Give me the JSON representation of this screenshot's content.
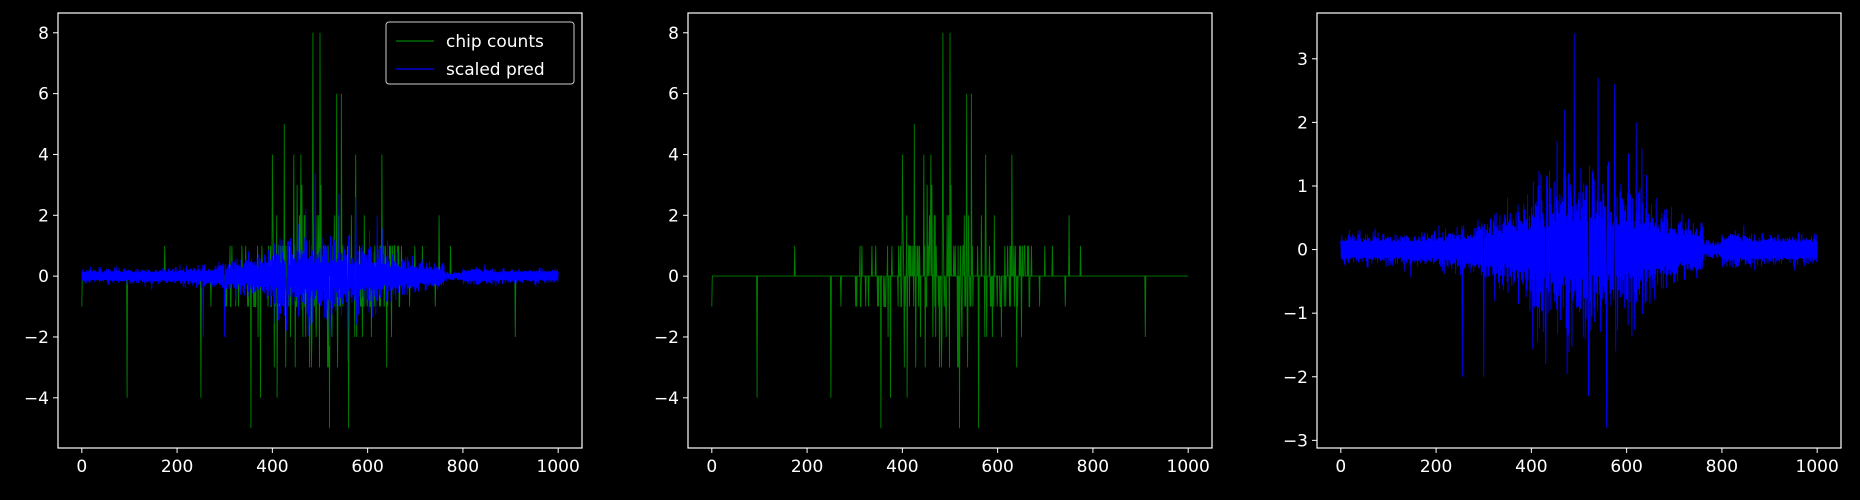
{
  "figure": {
    "background": "#000000",
    "foreground": "#ffffff"
  },
  "chart_data": [
    {
      "type": "line",
      "title": "",
      "xlabel": "",
      "ylabel": "",
      "xlim": [
        -50,
        1050
      ],
      "ylim": [
        -5.65,
        8.65
      ],
      "xticks": [
        0,
        200,
        400,
        600,
        800,
        1000
      ],
      "yticks": [
        -4,
        -2,
        0,
        2,
        4,
        6,
        8
      ],
      "grid": false,
      "legend": {
        "position": "top-right",
        "entries": [
          "chip counts",
          "scaled pred"
        ]
      },
      "series": [
        {
          "name": "chip counts",
          "color": "#008000",
          "x_range": [
            0,
            1000
          ],
          "n_points": 1001,
          "values_description_peaks": [
            {
              "x": 95,
              "y": -4
            },
            {
              "x": 250,
              "y": -4
            },
            {
              "x": 355,
              "y": -5
            },
            {
              "x": 375,
              "y": -4
            },
            {
              "x": 400,
              "y": 4
            },
            {
              "x": 410,
              "y": -4
            },
            {
              "x": 425,
              "y": 5
            },
            {
              "x": 445,
              "y": 4
            },
            {
              "x": 460,
              "y": 4
            },
            {
              "x": 485,
              "y": 8
            },
            {
              "x": 500,
              "y": 8
            },
            {
              "x": 520,
              "y": -5
            },
            {
              "x": 535,
              "y": 6
            },
            {
              "x": 545,
              "y": 6
            },
            {
              "x": 560,
              "y": -5
            },
            {
              "x": 575,
              "y": 4
            },
            {
              "x": 630,
              "y": 4
            },
            {
              "x": 640,
              "y": -3
            },
            {
              "x": 750,
              "y": 2
            },
            {
              "x": 910,
              "y": -2
            }
          ]
        },
        {
          "name": "scaled pred",
          "color": "#0000ff",
          "x_range": [
            0,
            1000
          ],
          "n_points": 1001,
          "y_peak_max": 3.4,
          "y_peak_min": -2.8
        }
      ]
    },
    {
      "type": "line",
      "title": "",
      "xlabel": "",
      "ylabel": "",
      "xlim": [
        -50,
        1050
      ],
      "ylim": [
        -5.65,
        8.65
      ],
      "xticks": [
        0,
        200,
        400,
        600,
        800,
        1000
      ],
      "yticks": [
        -4,
        -2,
        0,
        2,
        4,
        6,
        8
      ],
      "grid": false,
      "series": [
        {
          "color": "#008000",
          "x_range": [
            0,
            1000
          ],
          "n_points": 1001,
          "y_max": 8,
          "y_min": -5
        }
      ]
    },
    {
      "type": "line",
      "title": "",
      "xlabel": "",
      "ylabel": "",
      "xlim": [
        -50,
        1050
      ],
      "ylim": [
        -3.12,
        3.72
      ],
      "xticks": [
        0,
        200,
        400,
        600,
        800,
        1000
      ],
      "yticks": [
        -3,
        -2,
        -1,
        0,
        1,
        2,
        3
      ],
      "grid": false,
      "series": [
        {
          "color": "#0000ff",
          "x_range": [
            0,
            1000
          ],
          "n_points": 1001,
          "y_max": 3.4,
          "y_min": -2.8
        }
      ]
    }
  ]
}
